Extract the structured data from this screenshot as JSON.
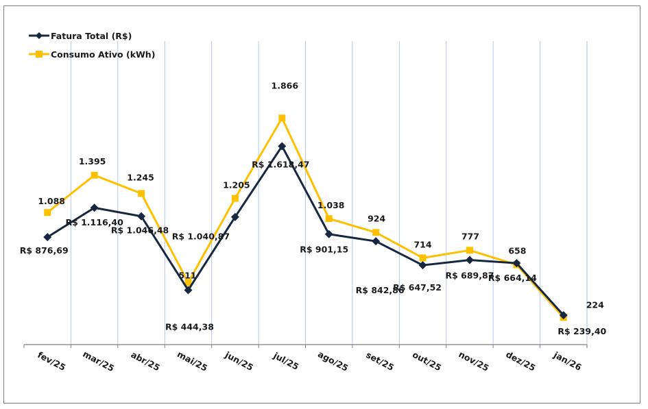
{
  "chart_data": {
    "type": "line",
    "title": "",
    "xlabel": "",
    "ylabel": "",
    "categories": [
      "fev/25",
      "mar/25",
      "abr/25",
      "mai/25",
      "jun/25",
      "jul/25",
      "ago/25",
      "set/25",
      "out/25",
      "nov/25",
      "dez/25",
      "jan/26"
    ],
    "series": [
      {
        "name": "Fatura Total (R$)",
        "color": "#16273f",
        "marker": "diamond",
        "values": [
          876.69,
          1116.4,
          1046.48,
          444.38,
          1040.87,
          1618.47,
          901.15,
          842.86,
          647.52,
          689.87,
          664.14,
          239.4
        ],
        "labels": [
          "R$ 876,69",
          "R$ 1.116,40",
          "R$ 1.046,48",
          "R$ 444,38",
          "R$ 1.040,87",
          "R$ 1.618,47",
          "R$ 901,15",
          "R$ 842,86",
          "R$ 647,52",
          "R$ 689,87",
          "R$ 664,14",
          "R$ 239,40"
        ]
      },
      {
        "name": "Consumo Ativo (kWh)",
        "color": "#ffc000",
        "marker": "square",
        "values": [
          1088,
          1395,
          1245,
          511,
          1205,
          1866,
          1038,
          924,
          714,
          777,
          658,
          224
        ],
        "labels": [
          "1.088",
          "1.395",
          "1.245",
          "511",
          "1.205",
          "1.866",
          "1.038",
          "924",
          "714",
          "777",
          "658",
          "224"
        ]
      }
    ],
    "ylim": [
      0,
      2800
    ],
    "y_axis_visible": false,
    "grid": "vertical",
    "grid_color": "#b4c7e7",
    "legend": "top-left"
  }
}
